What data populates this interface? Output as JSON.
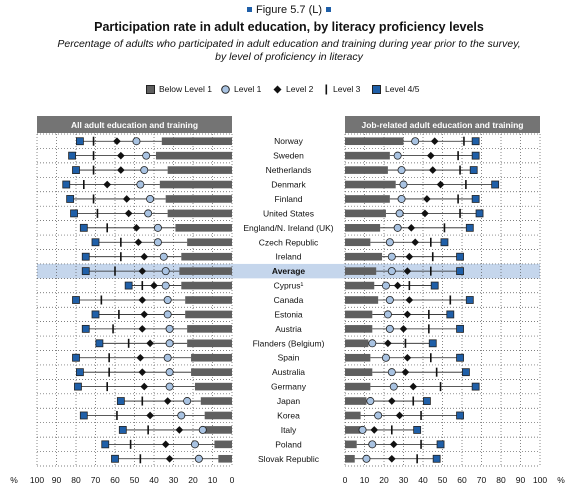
{
  "figure_label": "Figure 5.7 (L)",
  "title": "Participation rate in adult education, by literacy proficiency levels",
  "subtitle_line1": "Percentage of adults who participated in adult education and training during year prior to the survey,",
  "subtitle_line2": "by level of proficiency in literacy",
  "colors": {
    "dark_gray": "#5f5f5f",
    "light_blue": "#a9c3e2",
    "blue": "#1f5fa8",
    "band": "#c5d6ec",
    "header": "#747474"
  },
  "legend": [
    {
      "label": "Below Level 1",
      "icon": "dark-gray-square"
    },
    {
      "label": "Level 1",
      "icon": "light-blue-circle"
    },
    {
      "label": "Level 2",
      "icon": "black-diamond"
    },
    {
      "label": "Level 3",
      "icon": "black-dash"
    },
    {
      "label": "Level 4/5",
      "icon": "blue-square"
    }
  ],
  "axis_unit_label": "%",
  "axis_ticks": [
    "100",
    "90",
    "80",
    "70",
    "60",
    "50",
    "40",
    "30",
    "20",
    "10",
    "0"
  ],
  "axis_ticks_right": [
    "0",
    "10",
    "20",
    "30",
    "40",
    "50",
    "60",
    "70",
    "80",
    "90",
    "100"
  ],
  "chart_data": {
    "type": "dot-range",
    "series_order": [
      "Below Level 1",
      "Level 1",
      "Level 2",
      "Level 3",
      "Level 4/5"
    ],
    "xlim": [
      0,
      100
    ],
    "countries": [
      "Norway",
      "Sweden",
      "Netherlands",
      "Denmark",
      "Finland",
      "United States",
      "England/N. Ireland (UK)",
      "Czech Republic",
      "Ireland",
      "Average",
      "Cyprus¹",
      "Canada",
      "Estonia",
      "Austria",
      "Flanders (Belgium)",
      "Spain",
      "Australia",
      "Germany",
      "Japan",
      "Korea",
      "Italy",
      "Poland",
      "Slovak Republic"
    ],
    "highlight": "Average",
    "panels": [
      {
        "title": "All adult education and training",
        "direction": "reversed",
        "values": [
          [
            36,
            49,
            59,
            71,
            78
          ],
          [
            39,
            44,
            57,
            71,
            82
          ],
          [
            33,
            45,
            57,
            71,
            80
          ],
          [
            37,
            47,
            64,
            76,
            85
          ],
          [
            34,
            42,
            54,
            71,
            83
          ],
          [
            33,
            43,
            53,
            69,
            81
          ],
          [
            29,
            38,
            49,
            64,
            76
          ],
          [
            23,
            38,
            48,
            57,
            70
          ],
          [
            26,
            35,
            45,
            57,
            75
          ],
          [
            27,
            34,
            46,
            60,
            75
          ],
          [
            26,
            34,
            40,
            46,
            53
          ],
          [
            24,
            33,
            46,
            67,
            80
          ],
          [
            24,
            33,
            45,
            58,
            70
          ],
          [
            23,
            32,
            46,
            61,
            75
          ],
          [
            23,
            32,
            42,
            53,
            68
          ],
          [
            21,
            33,
            47,
            63,
            80
          ],
          [
            21,
            32,
            46,
            63,
            78
          ],
          [
            19,
            32,
            45,
            64,
            79
          ],
          [
            16,
            23,
            33,
            46,
            57
          ],
          [
            14,
            26,
            42,
            59,
            76
          ],
          [
            14,
            15,
            27,
            43,
            56
          ],
          [
            9,
            19,
            34,
            52,
            65
          ],
          [
            7,
            17,
            32,
            47,
            60
          ]
        ]
      },
      {
        "title": "Job-related adult education and training",
        "direction": "normal",
        "values": [
          [
            30,
            36,
            46,
            61,
            67
          ],
          [
            23,
            27,
            44,
            58,
            67
          ],
          [
            22,
            29,
            45,
            59,
            66
          ],
          [
            26,
            30,
            49,
            62,
            77
          ],
          [
            23,
            29,
            42,
            58,
            67
          ],
          [
            21,
            28,
            41,
            59,
            69
          ],
          [
            18,
            27,
            34,
            51,
            64
          ],
          [
            13,
            23,
            36,
            44,
            51
          ],
          [
            19,
            24,
            33,
            45,
            59
          ],
          [
            16,
            24,
            32,
            44,
            59
          ],
          [
            15,
            21,
            27,
            33,
            46
          ],
          [
            17,
            23,
            33,
            54,
            64
          ],
          [
            14,
            22,
            32,
            43,
            54
          ],
          [
            14,
            23,
            30,
            43,
            59
          ],
          [
            12,
            14,
            22,
            31,
            45
          ],
          [
            13,
            21,
            32,
            44,
            59
          ],
          [
            14,
            24,
            31,
            47,
            62
          ],
          [
            13,
            25,
            35,
            49,
            67
          ],
          [
            11,
            13,
            24,
            35,
            42
          ],
          [
            8,
            17,
            28,
            39,
            59
          ],
          [
            8,
            9,
            15,
            24,
            37
          ],
          [
            6,
            14,
            25,
            39,
            49
          ],
          [
            5,
            11,
            24,
            37,
            47
          ]
        ]
      }
    ]
  }
}
